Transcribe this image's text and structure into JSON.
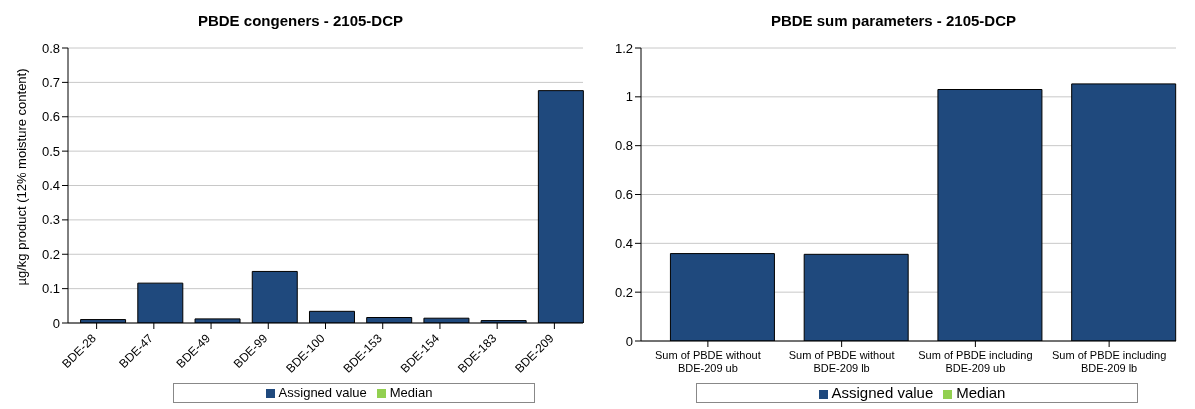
{
  "chart_data": [
    {
      "type": "bar",
      "title": "PBDE congeners - 2105-DCP",
      "ylabel": "µg/kg product (12% moisture content)",
      "categories": [
        "BDE-28",
        "BDE-47",
        "BDE-49",
        "BDE-99",
        "BDE-100",
        "BDE-153",
        "BDE-154",
        "BDE-183",
        "BDE-209"
      ],
      "series": [
        {
          "name": "Assigned value",
          "color": "#1f497d",
          "values": [
            0.01,
            0.116,
            0.012,
            0.15,
            0.034,
            0.016,
            0.014,
            0.007,
            0.676
          ]
        },
        {
          "name": "Median",
          "color": "#92d050",
          "values": [
            null,
            null,
            null,
            null,
            null,
            null,
            null,
            null,
            null
          ]
        }
      ],
      "ylim": [
        0,
        0.8
      ],
      "yticks": [
        0,
        0.1,
        0.2,
        0.3,
        0.4,
        0.5,
        0.6,
        0.7,
        0.8
      ],
      "grid": "y",
      "legend": "bottom"
    },
    {
      "type": "bar",
      "title": "PBDE sum parameters - 2105-DCP",
      "categories": [
        "Sum of PBDE without BDE-209 ub",
        "Sum of PBDE without BDE-209 lb",
        "Sum of PBDE including BDE-209 ub",
        "Sum of PBDE including BDE-209 lb"
      ],
      "series": [
        {
          "name": "Assigned value",
          "color": "#1f497d",
          "values": [
            0.358,
            0.355,
            1.03,
            1.053
          ]
        },
        {
          "name": "Median",
          "color": "#92d050",
          "values": [
            null,
            null,
            null,
            null
          ]
        }
      ],
      "ylim": [
        0,
        1.2
      ],
      "yticks": [
        0,
        0.2,
        0.4,
        0.6,
        0.8,
        1,
        1.2
      ],
      "grid": "y",
      "legend": "bottom"
    }
  ]
}
